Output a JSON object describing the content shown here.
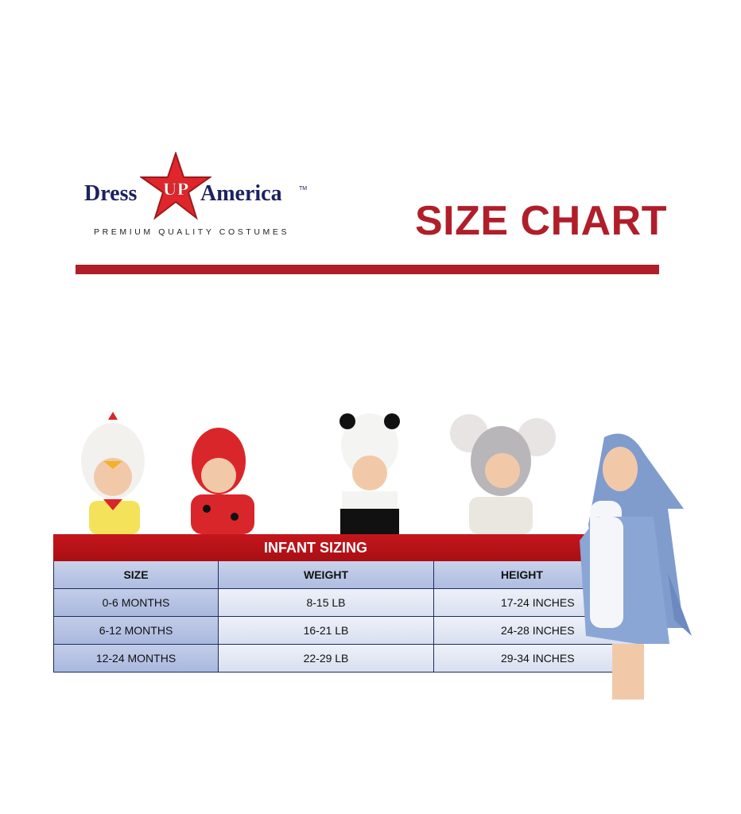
{
  "brand": {
    "word1": "Dress",
    "star_word": "UP",
    "word2": "America",
    "trademark": "TM",
    "tagline": "PREMIUM QUALITY COSTUMES"
  },
  "title": "SIZE CHART",
  "colors": {
    "accent_red": "#b01e2a",
    "brand_navy": "#1d2160",
    "table_blue": "#aebce0"
  },
  "costumes": [
    "chicken",
    "ladybug",
    "panda",
    "mouse",
    "shark"
  ],
  "table": {
    "caption": "INFANT SIZING",
    "headers": [
      "SIZE",
      "WEIGHT",
      "HEIGHT"
    ],
    "rows": [
      [
        "0-6 MONTHS",
        "8-15 LB",
        "17-24 INCHES"
      ],
      [
        "6-12 MONTHS",
        "16-21 LB",
        "24-28 INCHES"
      ],
      [
        "12-24 MONTHS",
        "22-29 LB",
        "29-34 INCHES"
      ]
    ]
  }
}
